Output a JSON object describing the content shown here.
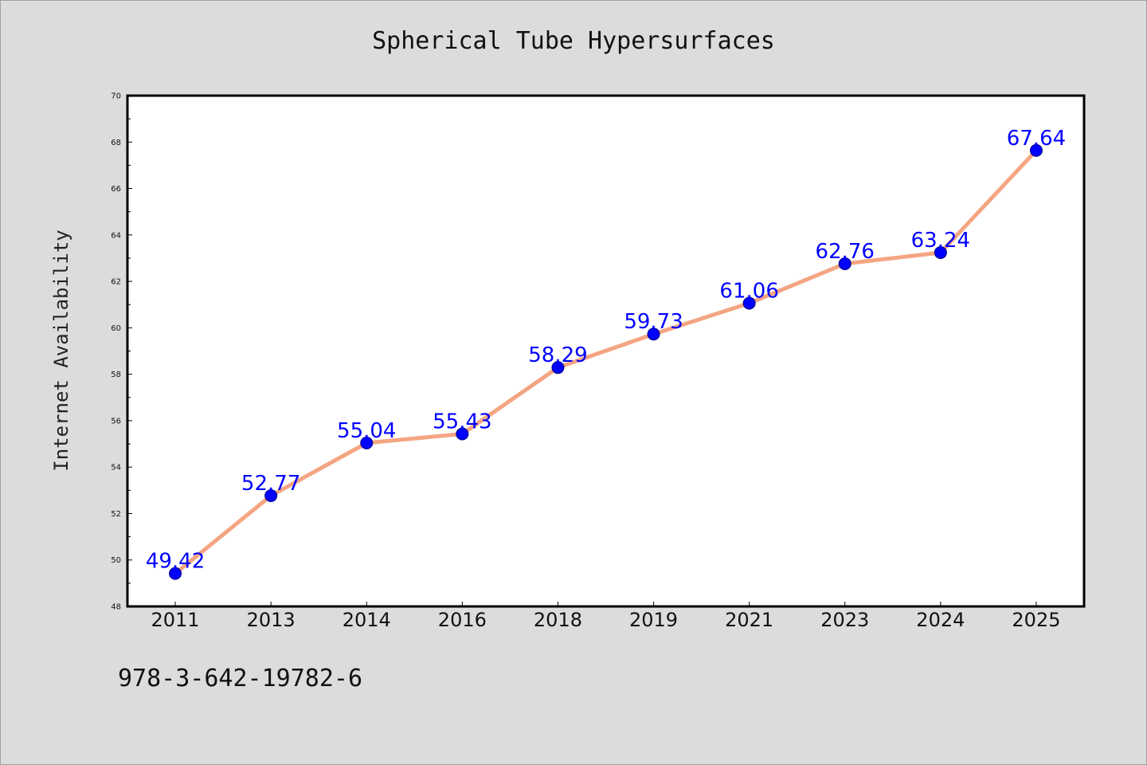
{
  "footer": {
    "isbn": "978-3-642-19782-6"
  },
  "colors": {
    "background": "#dcdcdc",
    "plot_background": "#ffffff",
    "line": "#f4a582",
    "marker": "#0000ff",
    "label": "#0000ff"
  },
  "chart_data": {
    "type": "line",
    "title": "Spherical Tube Hypersurfaces",
    "xlabel": "",
    "ylabel": "Internet Availability",
    "categories": [
      "2011",
      "2013",
      "2014",
      "2016",
      "2018",
      "2019",
      "2021",
      "2023",
      "2024",
      "2025"
    ],
    "series": [
      {
        "values": [
          49.42,
          52.77,
          55.04,
          55.43,
          58.29,
          59.73,
          61.06,
          62.76,
          63.24,
          67.64
        ],
        "labels": [
          "49.42",
          "52.77",
          "55.04",
          "55.43",
          "58.29",
          "59.73",
          "61.06",
          "62.76",
          "63.24",
          "67.64"
        ]
      }
    ],
    "ylim": [
      48,
      70
    ],
    "yticks": [
      "48",
      "50",
      "52",
      "54",
      "56",
      "58",
      "60",
      "62",
      "64",
      "66",
      "68",
      "70"
    ],
    "grid": false,
    "legend": "none"
  }
}
